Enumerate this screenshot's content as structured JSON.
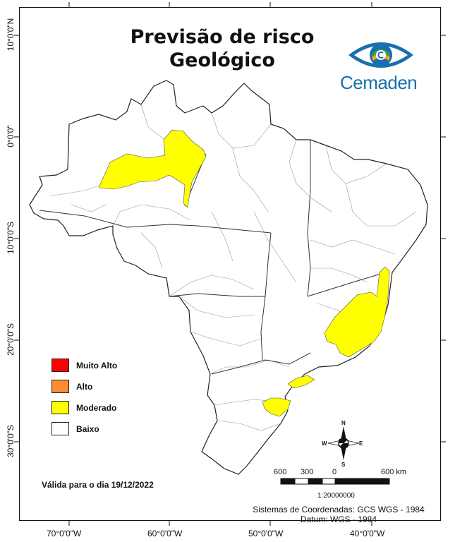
{
  "title_line1": "Previsão de risco",
  "title_line2": "Geológico",
  "logo": {
    "name": "Cemaden",
    "icon": "cemaden-eye-logo-icon",
    "color": "#1a6fae"
  },
  "lat_labels": [
    "10°0'0\"N",
    "0°0'0\"",
    "10°0'0\"S",
    "20°0'0\"S",
    "30°0'0\"S"
  ],
  "lon_labels": [
    "70°0'0\"W",
    "60°0'0\"W",
    "50°0'0\"W",
    "40°0'0\"W"
  ],
  "legend": [
    {
      "label": "Muito Alto",
      "color": "#ff0000"
    },
    {
      "label": "Alto",
      "color": "#ff8c33"
    },
    {
      "label": "Moderado",
      "color": "#ffff00"
    },
    {
      "label": "Baixo",
      "color": "#ffffff"
    }
  ],
  "validity": "Válida para o dia 19/12/2022",
  "crs_line1": "Sistemas de Coordenadas: GCS WGS - 1984",
  "crs_line2": "Datum: WGS - 1984",
  "scale": {
    "labels": [
      "600",
      "300",
      "0",
      "600 km"
    ],
    "ratio": "1:20000000"
  },
  "compass": {
    "n": "N",
    "s": "S",
    "e": "E",
    "w": "W",
    "icon": "compass-rose-icon"
  }
}
